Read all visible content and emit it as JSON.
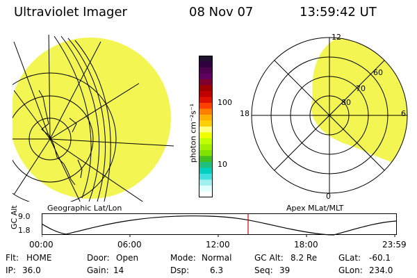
{
  "header": {
    "instrument": "Ultraviolet Imager",
    "date": "08 Nov 07",
    "time": "13:59:42 UT"
  },
  "colorbar": {
    "unit_label": "photon cm⁻²s⁻¹",
    "ticks": [
      "100",
      "10"
    ],
    "colors": [
      "#201030",
      "#300040",
      "#500050",
      "#600060",
      "#800030",
      "#a00000",
      "#c00000",
      "#e01000",
      "#ff4000",
      "#ff8000",
      "#ffb000",
      "#ffd000",
      "#ffff80",
      "#f0ff00",
      "#c0ff00",
      "#a0f000",
      "#80e000",
      "#40c020",
      "#20c080",
      "#00d0c0",
      "#40e0e0",
      "#a0f0f0",
      "#e0ffff",
      "#ffffff"
    ]
  },
  "left_panel": {
    "label": "Geographic Lat/Lon",
    "fill_color": "#f3f552"
  },
  "right_panel": {
    "label": "Apex MLat/MLT",
    "fill_color": "#f3f552",
    "mlt_labels": {
      "top": "12",
      "left": "18",
      "right": "6",
      "bottom": "0"
    },
    "lat_labels": [
      "60",
      "70",
      "80"
    ]
  },
  "altitude_plot": {
    "ylabel": "GC Alt",
    "yticks": [
      "9.0",
      "1.8"
    ],
    "xticks": [
      "00:00",
      "06:00",
      "12:00",
      "18:00",
      "23:59"
    ],
    "current_time_marker": "13:59:42",
    "marker_color": "#d00000"
  },
  "info": {
    "row1": {
      "flt_label": "Flt:",
      "flt_value": "HOME",
      "door_label": "Door:",
      "door_value": "Open",
      "mode_label": "Mode:",
      "mode_value": "Normal",
      "gcalt_label": "GC Alt:",
      "gcalt_value": "8.2 Re",
      "glat_label": "GLat:",
      "glat_value": "-60.1"
    },
    "row2": {
      "ip_label": "IP:",
      "ip_value": "36.0",
      "gain_label": "Gain:",
      "gain_value": "14",
      "dsp_label": "Dsp:",
      "dsp_value": "6.3",
      "seq_label": "Seq:",
      "seq_value": "39",
      "glon_label": "GLon:",
      "glon_value": "234.0"
    }
  }
}
